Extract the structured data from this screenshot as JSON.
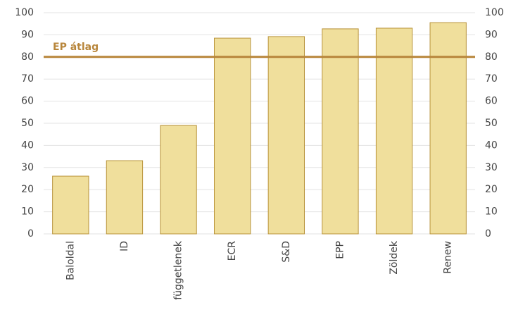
{
  "chart_data": {
    "type": "bar",
    "categories": [
      "Baloldal",
      "ID",
      "függetlenek",
      "ECR",
      "S&D",
      "EPP",
      "Zöldek",
      "Renew"
    ],
    "values": [
      26.1,
      33.1,
      49,
      88.5,
      89.2,
      92.7,
      93,
      95.5
    ],
    "color": "#f0df9c",
    "edge_color": "#b8933a",
    "ylim": [
      0,
      100
    ],
    "yticks": [
      0,
      10,
      20,
      30,
      40,
      50,
      60,
      70,
      80,
      90,
      100
    ],
    "grid": true,
    "reference_line": {
      "value": 80,
      "label": "EP átlag",
      "color": "#b8863b"
    }
  }
}
